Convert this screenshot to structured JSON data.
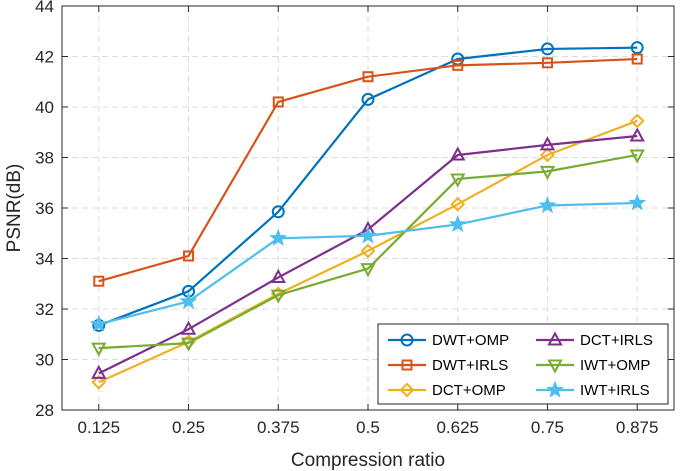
{
  "chart_data": {
    "type": "line",
    "title": "",
    "xlabel": "Compression ratio",
    "ylabel": "PSNR(dB)",
    "categories": [
      "0.125",
      "0.25",
      "0.375",
      "0.5",
      "0.625",
      "0.75",
      "0.875"
    ],
    "ylim": [
      28,
      44
    ],
    "yticks": [
      "28",
      "30",
      "32",
      "34",
      "36",
      "38",
      "40",
      "42",
      "44"
    ],
    "grid": true,
    "legend_position": "bottom-right",
    "series": [
      {
        "name": "DWT+OMP",
        "marker": "circle",
        "color": "#0072BD",
        "values": [
          31.35,
          32.7,
          35.85,
          40.3,
          41.9,
          42.3,
          42.35
        ]
      },
      {
        "name": "DWT+IRLS",
        "marker": "square",
        "color": "#D95319",
        "values": [
          33.1,
          34.1,
          40.2,
          41.2,
          41.65,
          41.75,
          41.9
        ]
      },
      {
        "name": "DCT+OMP",
        "marker": "diamond",
        "color": "#EDB120",
        "values": [
          29.1,
          30.7,
          32.6,
          34.3,
          36.15,
          38.1,
          39.45
        ]
      },
      {
        "name": "DCT+IRLS",
        "marker": "triangle-up",
        "color": "#7E2F8E",
        "values": [
          29.45,
          31.2,
          33.25,
          35.15,
          38.1,
          38.5,
          38.85
        ]
      },
      {
        "name": "IWT+OMP",
        "marker": "triangle-down",
        "color": "#77AC30",
        "values": [
          30.45,
          30.65,
          32.55,
          33.6,
          37.15,
          37.45,
          38.1
        ]
      },
      {
        "name": "IWT+IRLS",
        "marker": "star",
        "color": "#4DBEEE",
        "values": [
          31.4,
          32.3,
          34.8,
          34.9,
          35.35,
          36.1,
          36.2
        ]
      }
    ]
  }
}
